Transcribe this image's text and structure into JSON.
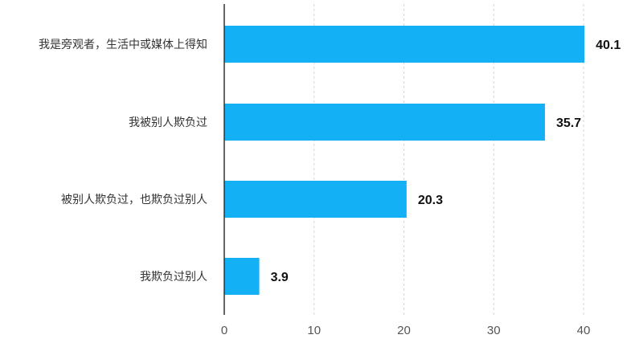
{
  "chart_data": {
    "type": "bar",
    "orientation": "horizontal",
    "categories": [
      "我是旁观者，生活中或媒体上得知",
      "我被别人欺负过",
      "被别人欺负过，也欺负过别人",
      "我欺负过别人"
    ],
    "values": [
      40.1,
      35.7,
      20.3,
      3.9
    ],
    "value_labels": [
      "40.1",
      "35.7",
      "20.3",
      "3.9"
    ],
    "xlim": [
      0,
      40
    ],
    "xticks": [
      0,
      10,
      20,
      30,
      40
    ],
    "xtick_labels": [
      "0",
      "10",
      "20",
      "30",
      "40"
    ],
    "grid": true,
    "legend": false,
    "bar_color": "#14b0f5"
  }
}
